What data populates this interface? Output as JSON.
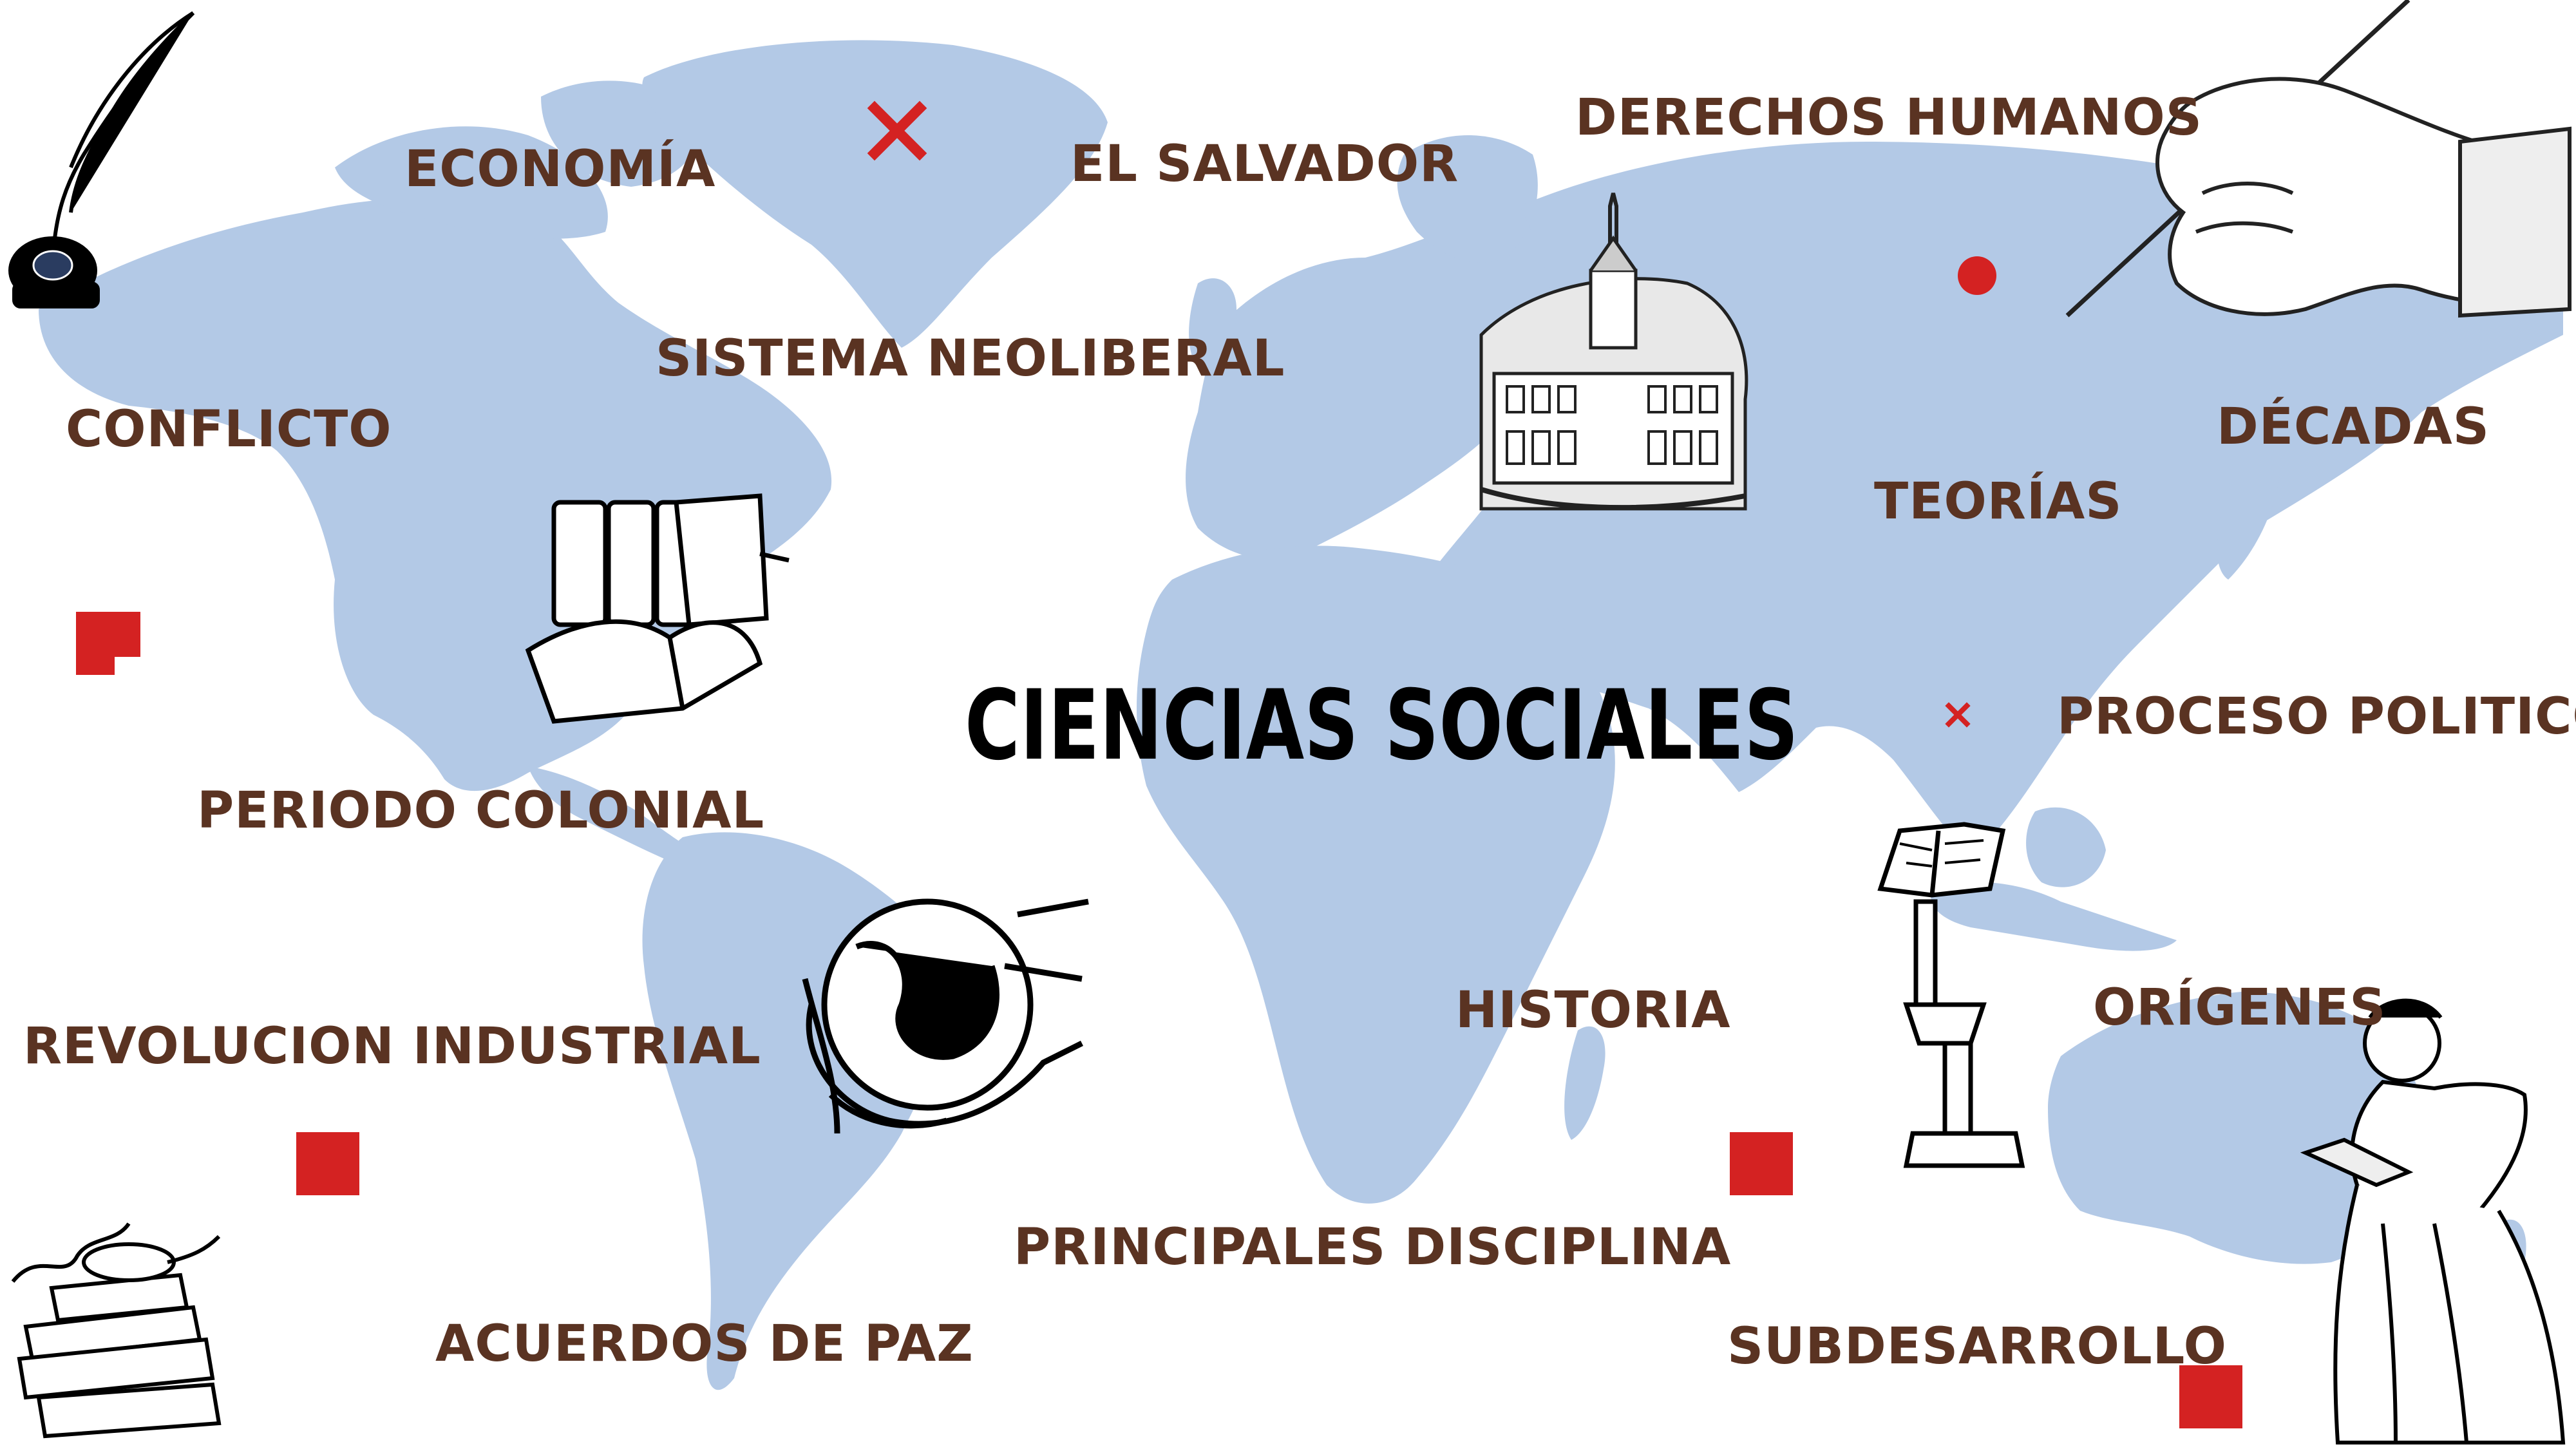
{
  "title": "CIENCIAS SOCIALES",
  "terms": {
    "economia": "ECONOMÍA",
    "el_salvador": "EL SALVADOR",
    "derechos_humanos": "DERECHOS HUMANOS",
    "sistema_neoliberal": "SISTEMA NEOLIBERAL",
    "conflicto": "CONFLICTO",
    "decadas": "DÉCADAS",
    "teorias": "TEORÍAS",
    "proceso_politico": "PROCESO POLITICO",
    "periodo_colonial": "PERIODO COLONIAL",
    "historia": "HISTORIA",
    "origenes": "ORÍGENES",
    "revolucion_industrial": "REVOLUCION INDUSTRIAL",
    "principales_disciplina": "PRINCIPALES DISCIPLINA",
    "acuerdos_de_paz": "ACUERDOS DE PAZ",
    "subdesarrollo": "SUBDESARROLLO"
  },
  "colors": {
    "map_land": "#b3c9e6",
    "term_text": "#5a3322",
    "title_text": "#000000",
    "accent_red": "#d42222"
  },
  "illustrations": [
    "quill-and-inkwell-icon",
    "stack-of-books-icon",
    "colonial-building-engraving",
    "hand-writing-with-quill-icon",
    "hands-holding-globe-icon",
    "book-on-lectern-icon",
    "woman-reading-book-engraving",
    "oil-lamp-and-books-icon"
  ]
}
